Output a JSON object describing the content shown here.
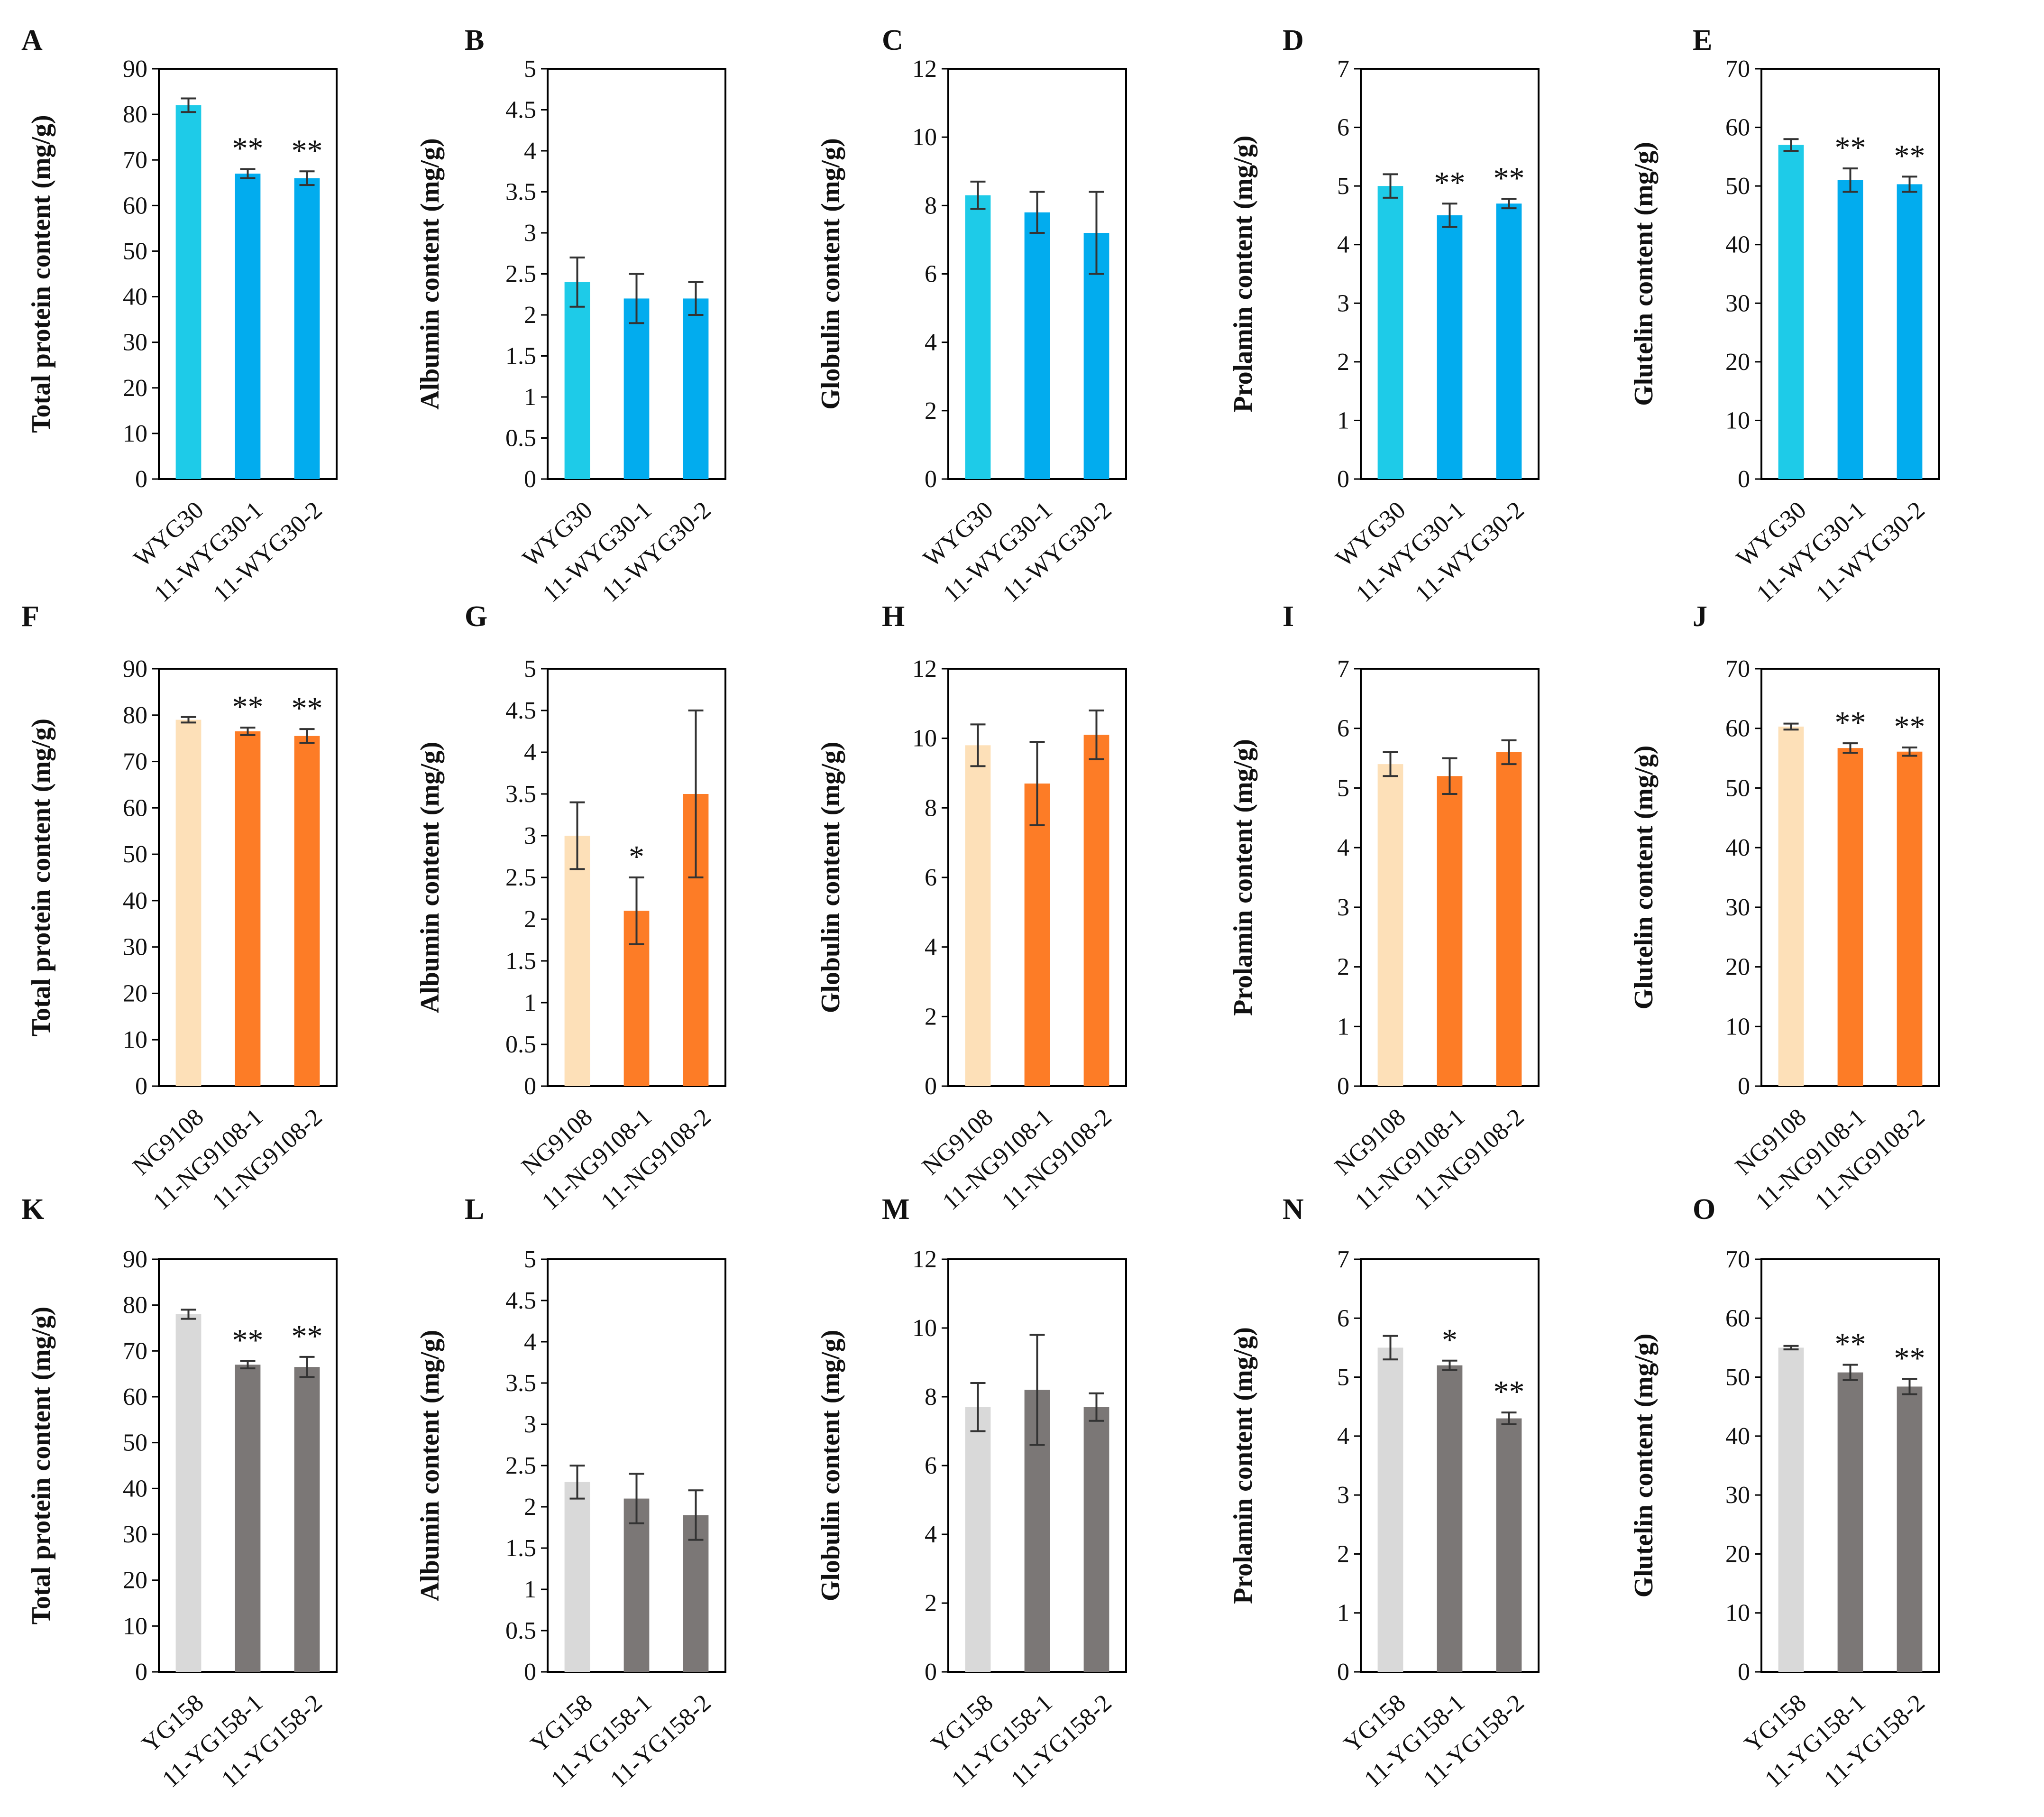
{
  "figure": {
    "colors": {
      "WYG": {
        "control": "#1ecbe8",
        "treated": "#02acee"
      },
      "NG": {
        "control": "#fde0b8",
        "treated": "#fd7c26"
      },
      "YG": {
        "control": "#d9d9d9",
        "treated": "#7b7776"
      }
    },
    "ylabels": {
      "total": "Total protein content (mg/g)",
      "albumin": "Albumin content (mg/g)",
      "globulin": "Globulin content (mg/g)",
      "prolamin": "Prolamin content (mg/g)",
      "glutelin": "Glutelin content (mg/g)"
    }
  },
  "chart_data": [
    {
      "panel": "A",
      "type": "bar",
      "ylabel": "Total protein content (mg/g)",
      "categories": [
        "WYG30",
        "11-WYG30-1",
        "11-WYG30-2"
      ],
      "values": [
        82,
        67,
        66
      ],
      "errors": [
        1.5,
        1,
        1.5
      ],
      "significance": [
        "",
        "**",
        "**"
      ],
      "ylim": [
        0,
        90
      ],
      "yticks": [
        "0",
        "10",
        "20",
        "30",
        "40",
        "50",
        "60",
        "70",
        "80",
        "90"
      ]
    },
    {
      "panel": "B",
      "type": "bar",
      "ylabel": "Albumin content (mg/g)",
      "categories": [
        "WYG30",
        "11-WYG30-1",
        "11-WYG30-2"
      ],
      "values": [
        2.4,
        2.2,
        2.2
      ],
      "errors": [
        0.3,
        0.3,
        0.2
      ],
      "significance": [
        "",
        "",
        ""
      ],
      "ylim": [
        0,
        5
      ],
      "yticks": [
        "0",
        "0.5",
        "1",
        "1.5",
        "2",
        "2.5",
        "3",
        "3.5",
        "4",
        "4.5",
        "5"
      ]
    },
    {
      "panel": "C",
      "type": "bar",
      "ylabel": "Globulin content (mg/g)",
      "categories": [
        "WYG30",
        "11-WYG30-1",
        "11-WYG30-2"
      ],
      "values": [
        8.3,
        7.8,
        7.2
      ],
      "errors": [
        0.4,
        0.6,
        1.2
      ],
      "significance": [
        "",
        "",
        ""
      ],
      "ylim": [
        0,
        12
      ],
      "yticks": [
        "0",
        "2",
        "4",
        "6",
        "8",
        "10",
        "12"
      ]
    },
    {
      "panel": "D",
      "type": "bar",
      "ylabel": "Prolamin content (mg/g)",
      "categories": [
        "WYG30",
        "11-WYG30-1",
        "11-WYG30-2"
      ],
      "values": [
        5,
        4.5,
        4.7
      ],
      "errors": [
        0.2,
        0.2,
        0.08
      ],
      "significance": [
        "",
        "**",
        "**"
      ],
      "ylim": [
        0,
        7
      ],
      "yticks": [
        "0",
        "1",
        "2",
        "3",
        "4",
        "5",
        "6",
        "7"
      ]
    },
    {
      "panel": "E",
      "type": "bar",
      "ylabel": "Glutelin content (mg/g)",
      "categories": [
        "WYG30",
        "11-WYG30-1",
        "11-WYG30-2"
      ],
      "values": [
        57,
        51,
        50.3
      ],
      "errors": [
        1,
        2,
        1.3
      ],
      "significance": [
        "",
        "**",
        "**"
      ],
      "ylim": [
        0,
        70
      ],
      "yticks": [
        "0",
        "10",
        "20",
        "30",
        "40",
        "50",
        "60",
        "70"
      ]
    },
    {
      "panel": "F",
      "type": "bar",
      "ylabel": "Total protein content (mg/g)",
      "categories": [
        "NG9108",
        "11-NG9108-1",
        "11-NG9108-2"
      ],
      "values": [
        79,
        76.5,
        75.5
      ],
      "errors": [
        0.6,
        0.8,
        1.5
      ],
      "significance": [
        "",
        "**",
        "**"
      ],
      "ylim": [
        0,
        90
      ],
      "yticks": [
        "0",
        "10",
        "20",
        "30",
        "40",
        "50",
        "60",
        "70",
        "80",
        "90"
      ]
    },
    {
      "panel": "G",
      "type": "bar",
      "ylabel": "Albumin content (mg/g)",
      "categories": [
        "NG9108",
        "11-NG9108-1",
        "11-NG9108-2"
      ],
      "values": [
        3,
        2.1,
        3.5
      ],
      "errors": [
        0.4,
        0.4,
        1
      ],
      "significance": [
        "",
        "*",
        ""
      ],
      "ylim": [
        0,
        5
      ],
      "yticks": [
        "0",
        "0.5",
        "1",
        "1.5",
        "2",
        "2.5",
        "3",
        "3.5",
        "4",
        "4.5",
        "5"
      ]
    },
    {
      "panel": "H",
      "type": "bar",
      "ylabel": "Globulin content (mg/g)",
      "categories": [
        "NG9108",
        "11-NG9108-1",
        "11-NG9108-2"
      ],
      "values": [
        9.8,
        8.7,
        10.1
      ],
      "errors": [
        0.6,
        1.2,
        0.7
      ],
      "significance": [
        "",
        "",
        ""
      ],
      "ylim": [
        0,
        12
      ],
      "yticks": [
        "0",
        "2",
        "4",
        "6",
        "8",
        "10",
        "12"
      ]
    },
    {
      "panel": "I",
      "type": "bar",
      "ylabel": "Prolamin content (mg/g)",
      "categories": [
        "NG9108",
        "11-NG9108-1",
        "11-NG9108-2"
      ],
      "values": [
        5.4,
        5.2,
        5.6
      ],
      "errors": [
        0.2,
        0.3,
        0.2
      ],
      "significance": [
        "",
        "",
        ""
      ],
      "ylim": [
        0,
        7
      ],
      "yticks": [
        "0",
        "1",
        "2",
        "3",
        "4",
        "5",
        "6",
        "7"
      ]
    },
    {
      "panel": "J",
      "type": "bar",
      "ylabel": "Glutelin content (mg/g)",
      "categories": [
        "NG9108",
        "11-NG9108-1",
        "11-NG9108-2"
      ],
      "values": [
        60.3,
        56.7,
        56.1
      ],
      "errors": [
        0.5,
        0.8,
        0.7
      ],
      "significance": [
        "",
        "**",
        "**"
      ],
      "ylim": [
        0,
        70
      ],
      "yticks": [
        "0",
        "10",
        "20",
        "30",
        "40",
        "50",
        "60",
        "70"
      ]
    },
    {
      "panel": "K",
      "type": "bar",
      "ylabel": "Total protein content (mg/g)",
      "categories": [
        "YG158",
        "11-YG158-1",
        "11-YG158-2"
      ],
      "values": [
        78,
        67,
        66.5
      ],
      "errors": [
        1,
        0.8,
        2.2
      ],
      "significance": [
        "",
        "**",
        "**"
      ],
      "ylim": [
        0,
        90
      ],
      "yticks": [
        "0",
        "10",
        "20",
        "30",
        "40",
        "50",
        "60",
        "70",
        "80",
        "90"
      ]
    },
    {
      "panel": "L",
      "type": "bar",
      "ylabel": "Albumin content (mg/g)",
      "categories": [
        "YG158",
        "11-YG158-1",
        "11-YG158-2"
      ],
      "values": [
        2.3,
        2.1,
        1.9
      ],
      "errors": [
        0.2,
        0.3,
        0.3
      ],
      "significance": [
        "",
        "",
        ""
      ],
      "ylim": [
        0,
        5
      ],
      "yticks": [
        "0",
        "0.5",
        "1",
        "1.5",
        "2",
        "2.5",
        "3",
        "3.5",
        "4",
        "4.5",
        "5"
      ]
    },
    {
      "panel": "M",
      "type": "bar",
      "ylabel": "Globulin content (mg/g)",
      "categories": [
        "YG158",
        "11-YG158-1",
        "11-YG158-2"
      ],
      "values": [
        7.7,
        8.2,
        7.7
      ],
      "errors": [
        0.7,
        1.6,
        0.4
      ],
      "significance": [
        "",
        "",
        ""
      ],
      "ylim": [
        0,
        12
      ],
      "yticks": [
        "0",
        "2",
        "4",
        "6",
        "8",
        "10",
        "12"
      ]
    },
    {
      "panel": "N",
      "type": "bar",
      "ylabel": "Prolamin content (mg/g)",
      "categories": [
        "YG158",
        "11-YG158-1",
        "11-YG158-2"
      ],
      "values": [
        5.5,
        5.2,
        4.3
      ],
      "errors": [
        0.2,
        0.08,
        0.1
      ],
      "significance": [
        "",
        "*",
        "**"
      ],
      "ylim": [
        0,
        7
      ],
      "yticks": [
        "0",
        "1",
        "2",
        "3",
        "4",
        "5",
        "6",
        "7"
      ]
    },
    {
      "panel": "O",
      "type": "bar",
      "ylabel": "Glutelin content (mg/g)",
      "categories": [
        "YG158",
        "11-YG158-1",
        "11-YG158-2"
      ],
      "values": [
        55,
        50.8,
        48.4
      ],
      "errors": [
        0.3,
        1.3,
        1.3
      ],
      "significance": [
        "",
        "**",
        "**"
      ],
      "ylim": [
        0,
        70
      ],
      "yticks": [
        "0",
        "10",
        "20",
        "30",
        "40",
        "50",
        "60",
        "70"
      ]
    }
  ]
}
